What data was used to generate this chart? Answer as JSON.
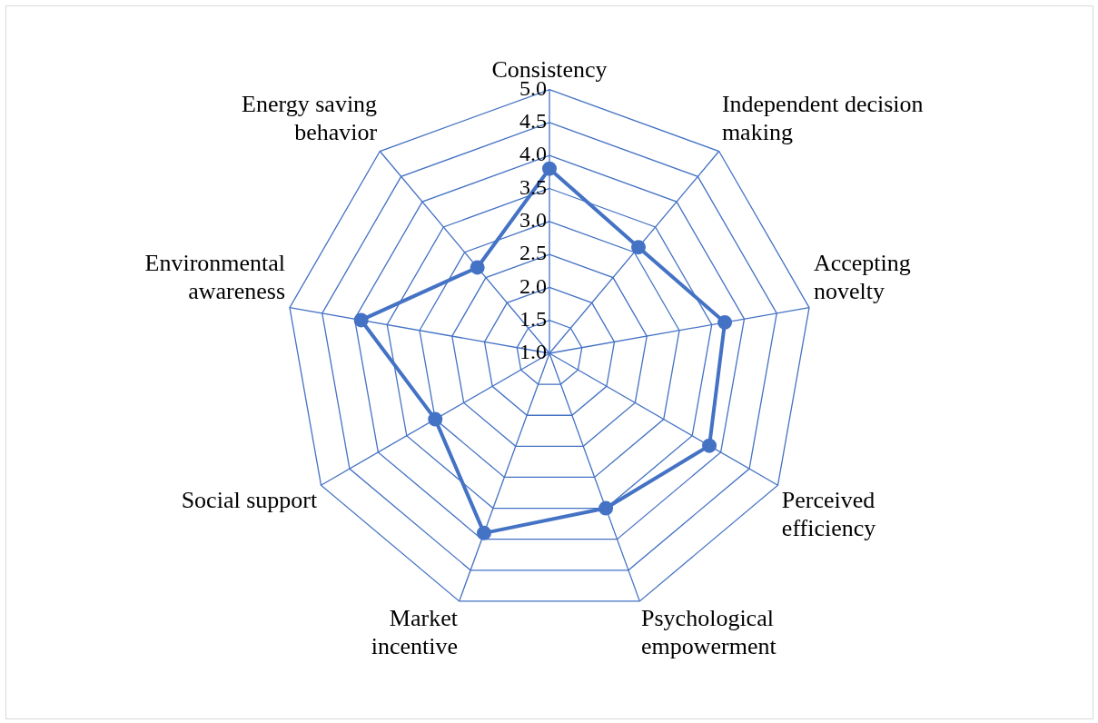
{
  "chart_data": {
    "type": "radar",
    "categories": [
      "Consistency",
      "Independent decision making",
      "Accepting novelty",
      "Perceived efficiency",
      "Psychological empowerment",
      "Market incentive",
      "Social support",
      "Environmental awareness",
      "Energy saving behavior"
    ],
    "series": [
      {
        "color": "#4472c4",
        "values": [
          3.8,
          3.1,
          3.7,
          3.8,
          3.5,
          3.9,
          3.0,
          3.9,
          2.7
        ]
      }
    ],
    "ylim": [
      1.0,
      5.0
    ],
    "yticks": [
      {
        "value": 1.0,
        "label": "1.0"
      },
      {
        "value": 1.5,
        "label": "1.5"
      },
      {
        "value": 2.0,
        "label": "2.0"
      },
      {
        "value": 2.5,
        "label": "2.5"
      },
      {
        "value": 3.0,
        "label": "3.0"
      },
      {
        "value": 3.5,
        "label": "3.5"
      },
      {
        "value": 4.0,
        "label": "4.0"
      },
      {
        "value": 4.5,
        "label": "4.5"
      },
      {
        "value": 5.0,
        "label": "5.0"
      }
    ],
    "grid": true,
    "legend": false,
    "marker": "circle",
    "line_style": "solid"
  }
}
